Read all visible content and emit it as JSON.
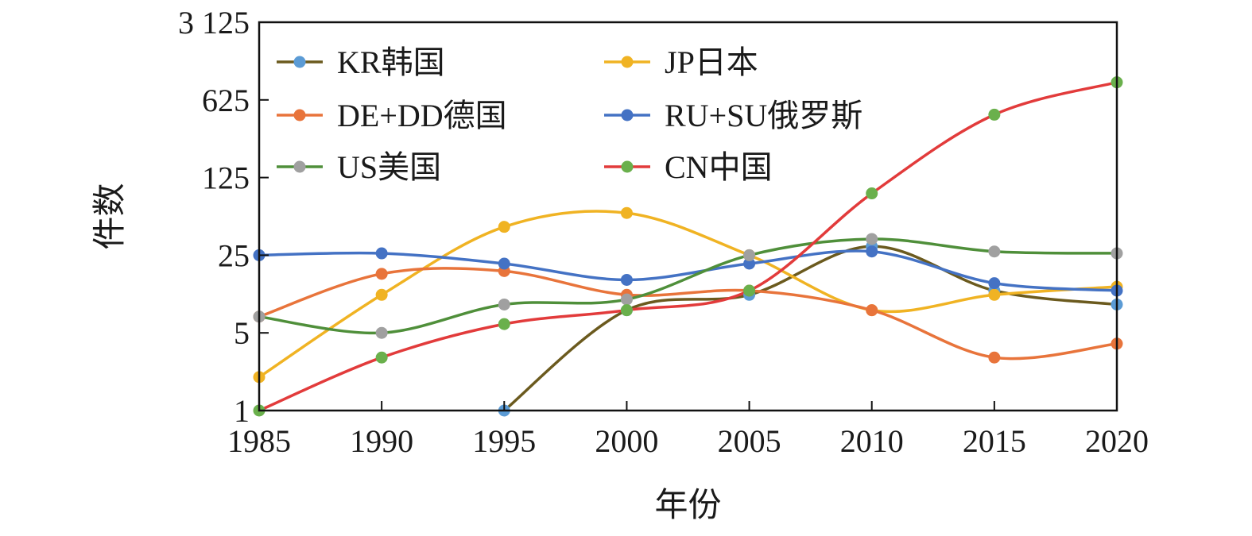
{
  "chart_data": {
    "type": "line",
    "xlabel": "年份",
    "ylabel": "件数",
    "yscale": "log",
    "ylim": [
      1,
      3125
    ],
    "xlim": [
      1985,
      2020
    ],
    "x": [
      1985,
      1990,
      1995,
      2000,
      2005,
      2010,
      2015,
      2020
    ],
    "x_tick_labels": [
      "1985",
      "1990",
      "1995",
      "2000",
      "2005",
      "2010",
      "2015",
      "2020"
    ],
    "y_ticks": [
      1,
      5,
      25,
      125,
      625,
      3125
    ],
    "y_tick_labels": [
      "1",
      "5",
      "25",
      "125",
      "625",
      "3 125"
    ],
    "grid": false,
    "legend_position": "top-left, inside",
    "series": [
      {
        "name": "KR韩国",
        "color": "#6b5a1e",
        "marker_color": "#5b9bd5",
        "values": [
          null,
          null,
          1,
          8,
          11,
          30,
          12,
          9
        ]
      },
      {
        "name": "JP日本",
        "color": "#f0b323",
        "marker_color": "#f0b323",
        "values": [
          2,
          11,
          45,
          60,
          25,
          8,
          11,
          13
        ]
      },
      {
        "name": "DE+DD德国",
        "color": "#e8743b",
        "marker_color": "#e8743b",
        "values": [
          7,
          17,
          18,
          11,
          12,
          8,
          3,
          4
        ]
      },
      {
        "name": "RU+SU俄罗斯",
        "color": "#4472c4",
        "marker_color": "#4472c4",
        "values": [
          25,
          26,
          21,
          15,
          21,
          27,
          14,
          12
        ]
      },
      {
        "name": "US美国",
        "color": "#4f8f3a",
        "marker_color": "#a0a0a0",
        "values": [
          7,
          5,
          9,
          10,
          25,
          35,
          27,
          26
        ]
      },
      {
        "name": "CN中国",
        "color": "#e23b3b",
        "marker_color": "#6ab04c",
        "values": [
          1,
          3,
          6,
          8,
          12,
          90,
          460,
          900
        ]
      }
    ]
  }
}
